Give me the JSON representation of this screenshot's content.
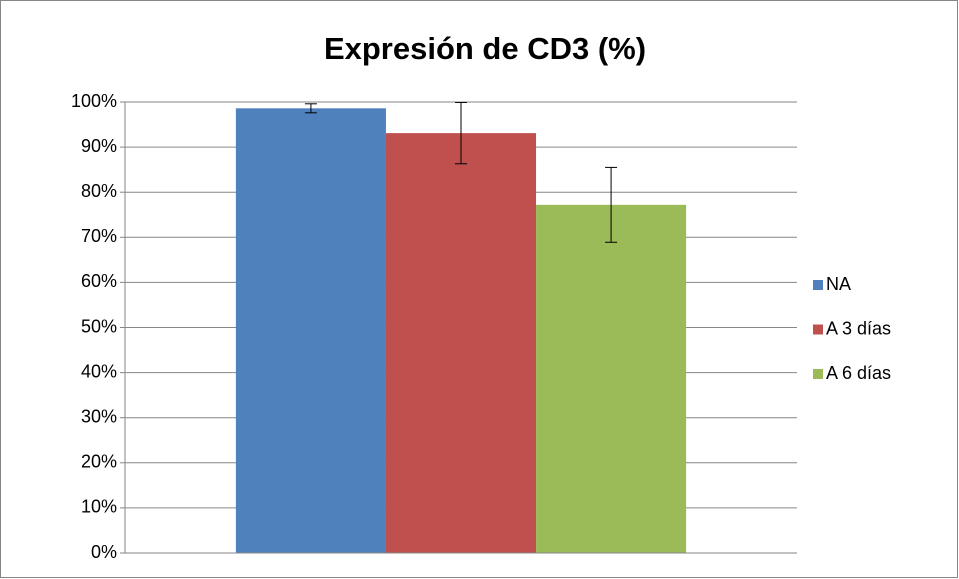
{
  "chart_data": {
    "type": "bar",
    "title": "Expresión de CD3 (%)",
    "categories": [
      null
    ],
    "series": [
      {
        "name": "NA",
        "color": "#4f81bd",
        "values": [
          98.6
        ],
        "errors": [
          1.0
        ]
      },
      {
        "name": "A 3 días",
        "color": "#c0504d",
        "values": [
          93.1
        ],
        "errors": [
          6.8
        ]
      },
      {
        "name": "A 6 días",
        "color": "#9bbb59",
        "values": [
          77.2
        ],
        "errors": [
          8.3
        ]
      }
    ],
    "ylim": [
      0,
      100
    ],
    "yticks": [
      {
        "value": 0,
        "label": "0%"
      },
      {
        "value": 10,
        "label": "10%"
      },
      {
        "value": 20,
        "label": "20%"
      },
      {
        "value": 30,
        "label": "30%"
      },
      {
        "value": 40,
        "label": "40%"
      },
      {
        "value": 50,
        "label": "50%"
      },
      {
        "value": 60,
        "label": "60%"
      },
      {
        "value": 70,
        "label": "70%"
      },
      {
        "value": 80,
        "label": "80%"
      },
      {
        "value": 90,
        "label": "90%"
      },
      {
        "value": 100,
        "label": "100%"
      }
    ],
    "grid": true,
    "legend": "right"
  }
}
